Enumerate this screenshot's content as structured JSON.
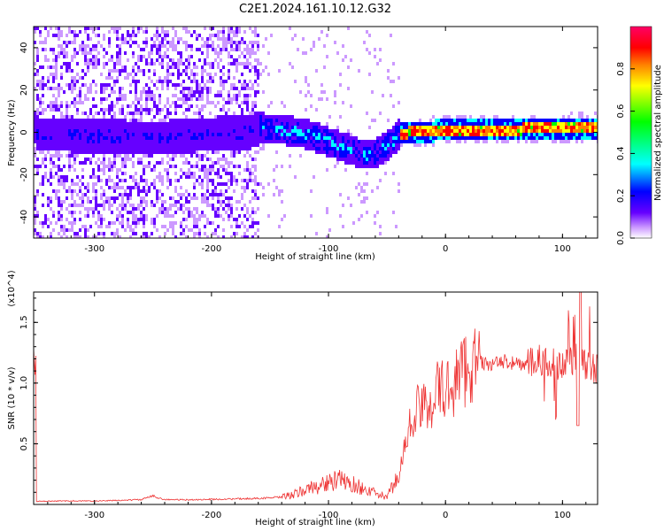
{
  "title": "C2E1.2024.161.10.12.G32",
  "chart_data": [
    {
      "type": "heatmap",
      "xlabel": "Height of straight line (km)",
      "ylabel": "Frequency (Hz)",
      "xlim": [
        -352,
        130
      ],
      "ylim": [
        -50,
        50
      ],
      "xticks": [
        -300,
        -200,
        -100,
        0,
        100
      ],
      "xtick_labels": [
        "-300",
        "-200",
        "-100",
        "0",
        "100"
      ],
      "yticks": [
        -40,
        -20,
        0,
        20,
        40
      ],
      "ytick_labels": [
        "-40",
        "-20",
        "0",
        "20",
        "40"
      ],
      "colorbar": {
        "label": "Normalized spectral amplitude",
        "range": [
          0,
          1
        ],
        "ticks": [
          0.0,
          0.2,
          0.4,
          0.6,
          0.8
        ],
        "tick_labels": [
          "0.0",
          "0.2",
          "0.4",
          "0.6",
          "0.8"
        ],
        "colormap": [
          "#ffffff",
          "#cc99ff",
          "#6600ff",
          "#0000ff",
          "#00ffff",
          "#00ff00",
          "#ffff00",
          "#ff8000",
          "#ff0000",
          "#ff0066"
        ]
      },
      "dominant_frequency_track": {
        "x": [
          -350,
          -300,
          -250,
          -200,
          -170,
          -160,
          -140,
          -120,
          -100,
          -80,
          -70,
          -60,
          -50,
          -40,
          -30,
          -20,
          0,
          50,
          100,
          130
        ],
        "y": [
          0,
          -1,
          -2,
          0,
          1,
          3,
          2,
          0,
          -4,
          -8,
          -10,
          -9,
          -5,
          0,
          1,
          1,
          2,
          2,
          3,
          3
        ]
      },
      "grid": false
    },
    {
      "type": "line",
      "xlabel": "Height of straight line (km)",
      "ylabel": "SNR (10 * v/v)",
      "y_multiplier": "(x10^4)",
      "xlim": [
        -352,
        130
      ],
      "ylim": [
        0,
        17500
      ],
      "xticks": [
        -300,
        -200,
        -100,
        0,
        100
      ],
      "xtick_labels": [
        "-300",
        "-200",
        "-100",
        "0",
        "100"
      ],
      "yticks": [
        5000,
        10000,
        15000
      ],
      "ytick_labels": [
        "0.5",
        "1.0",
        "1.5"
      ],
      "series": [
        {
          "color": "#ee3333",
          "x": [
            -350,
            -320,
            -300,
            -280,
            -260,
            -250,
            -240,
            -220,
            -200,
            -180,
            -160,
            -140,
            -130,
            -120,
            -110,
            -100,
            -90,
            -80,
            -70,
            -60,
            -50,
            -45,
            -40,
            -35,
            -30,
            -25,
            -20,
            -15,
            -10,
            -5,
            0,
            5,
            10,
            15,
            20,
            30,
            40,
            50,
            60,
            70,
            80,
            90,
            100,
            110,
            115,
            120,
            130
          ],
          "y": [
            250,
            300,
            280,
            330,
            400,
            700,
            400,
            380,
            420,
            450,
            500,
            600,
            800,
            1200,
            1500,
            1800,
            2000,
            1700,
            1300,
            900,
            600,
            1500,
            2500,
            4500,
            6500,
            8000,
            7500,
            8500,
            9000,
            9500,
            9200,
            9800,
            10500,
            11000,
            11500,
            11700,
            11500,
            11800,
            11600,
            11500,
            11800,
            11700,
            11600,
            11800,
            12000,
            11500,
            11200
          ]
        }
      ],
      "grid": false
    }
  ]
}
